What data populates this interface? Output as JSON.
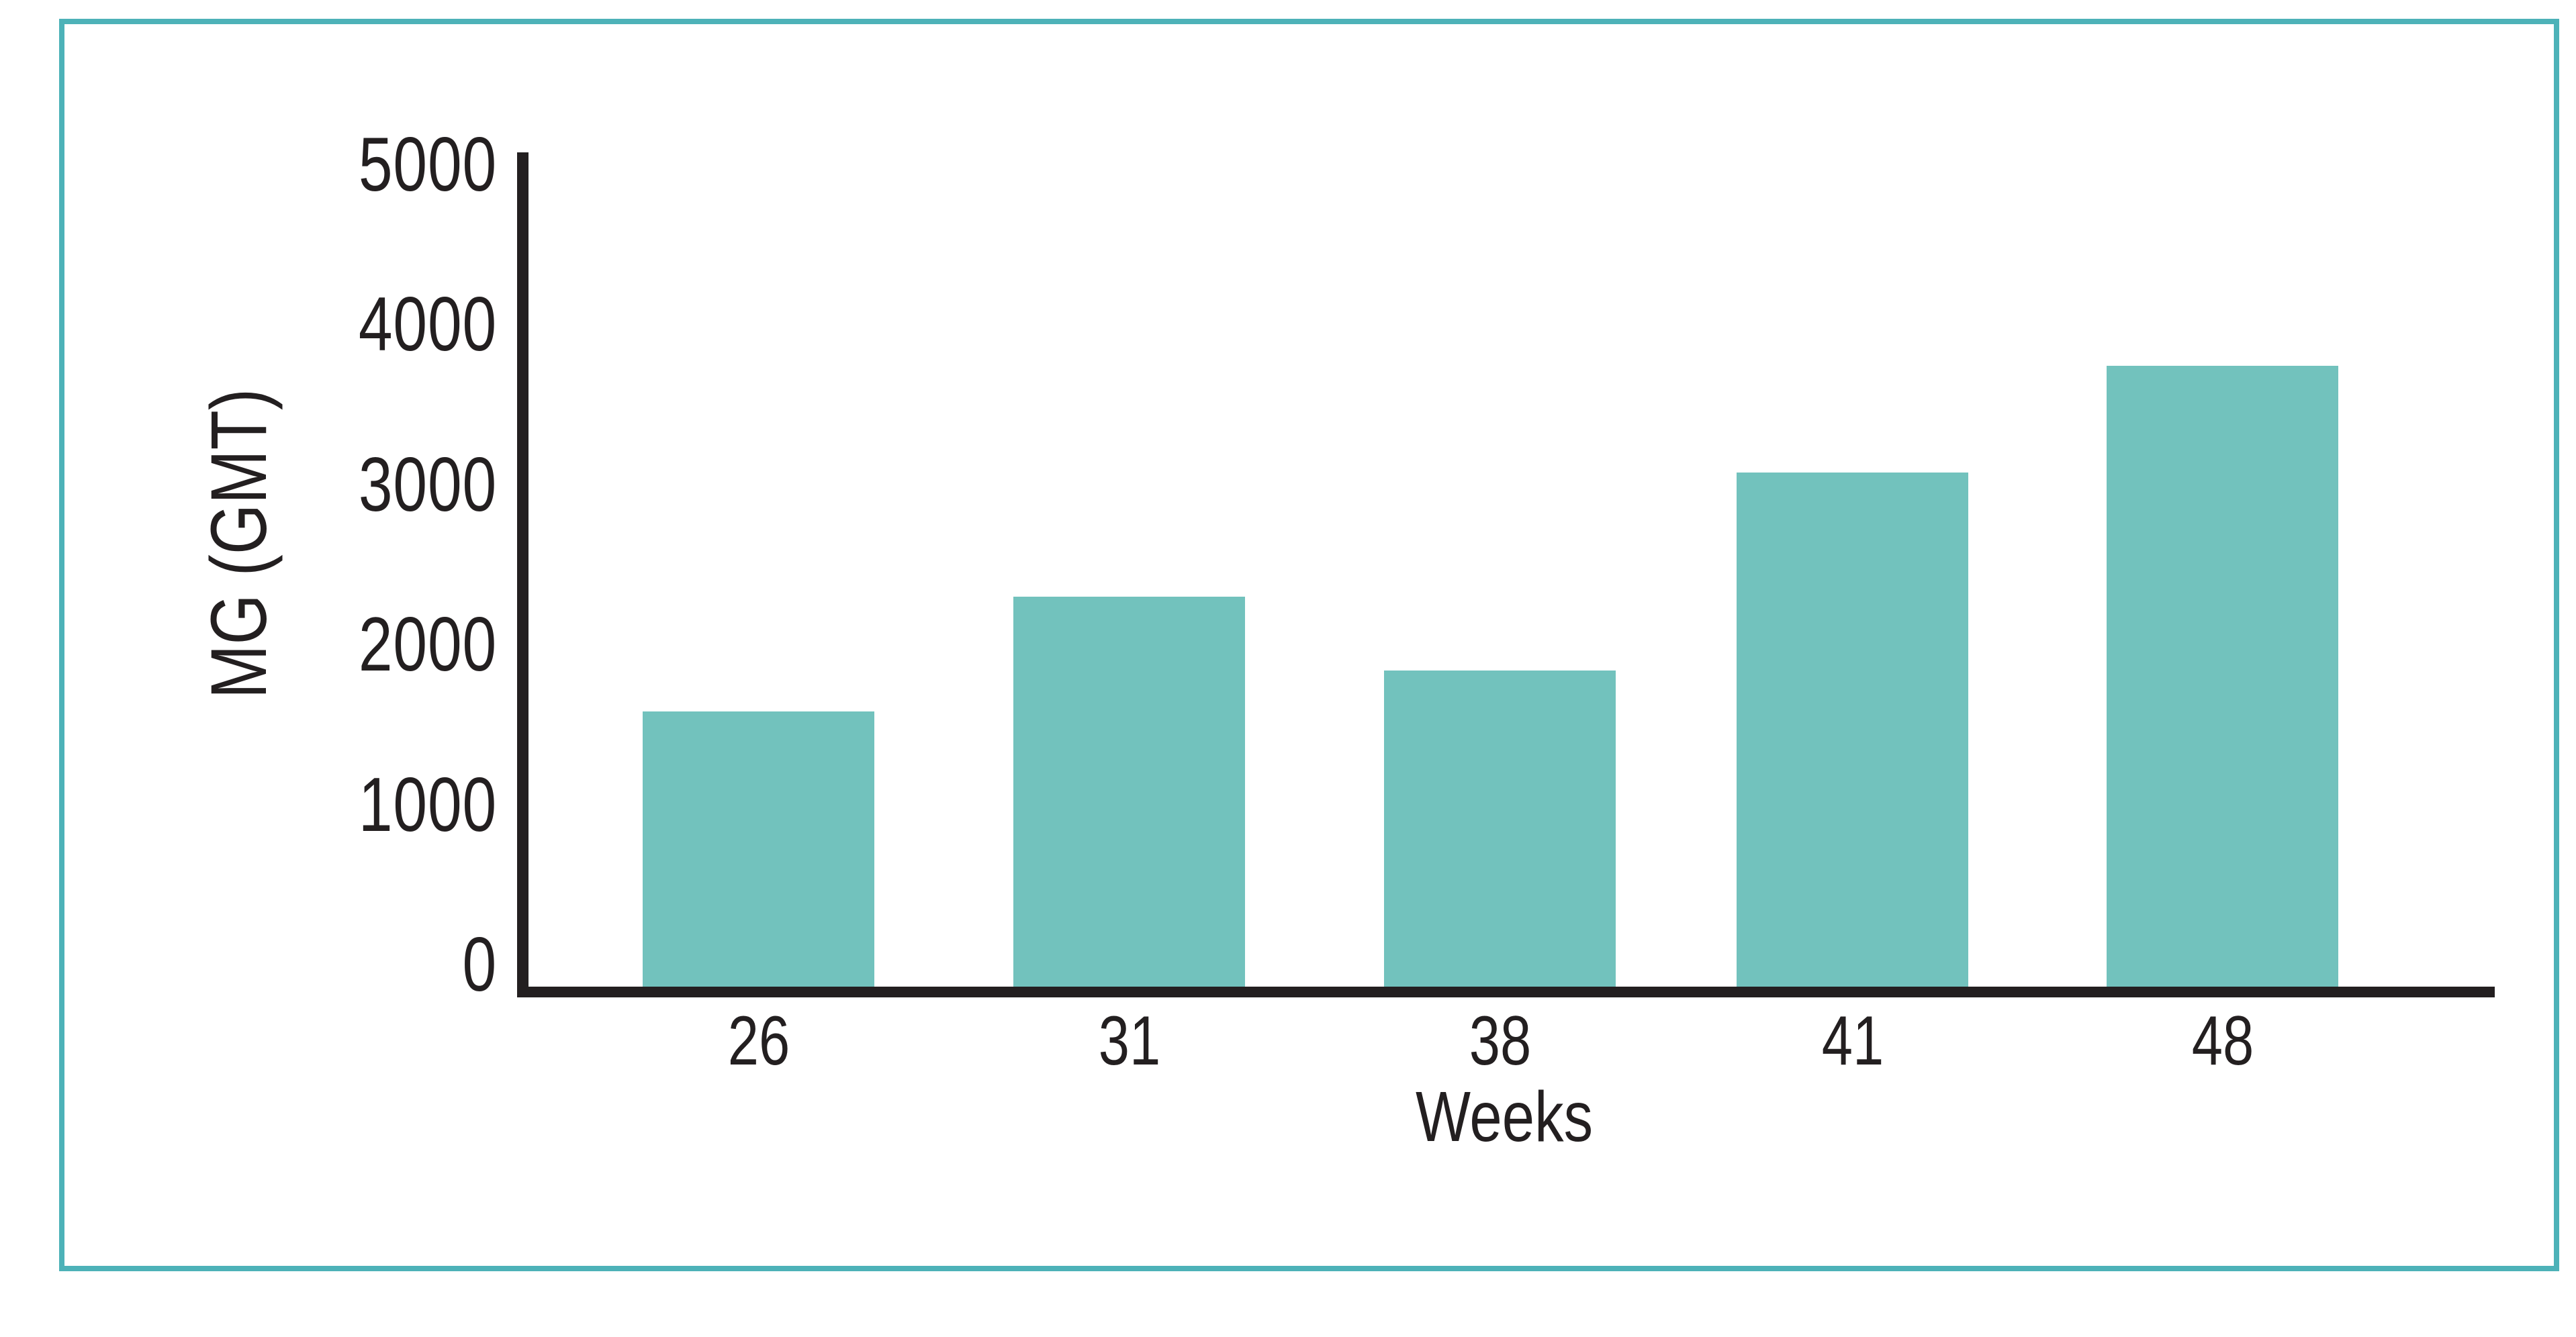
{
  "chart_data": {
    "type": "bar",
    "title": "",
    "categories": [
      "26",
      "31",
      "38",
      "41",
      "48"
    ],
    "values": [
      1700,
      2400,
      1950,
      3150,
      3800
    ],
    "xlabel": "Weeks",
    "ylabel": "MG (GMT)",
    "y_tick_labels": [
      "0",
      "1000",
      "2000",
      "3000",
      "4000",
      "5000"
    ],
    "ylim": [
      0,
      5000
    ],
    "grid": false,
    "legend": false,
    "bar_color": "#72c2bd",
    "axis_color": "#231f20",
    "frame_border_color": "#4db2b8",
    "background_color": "#ffffff"
  }
}
